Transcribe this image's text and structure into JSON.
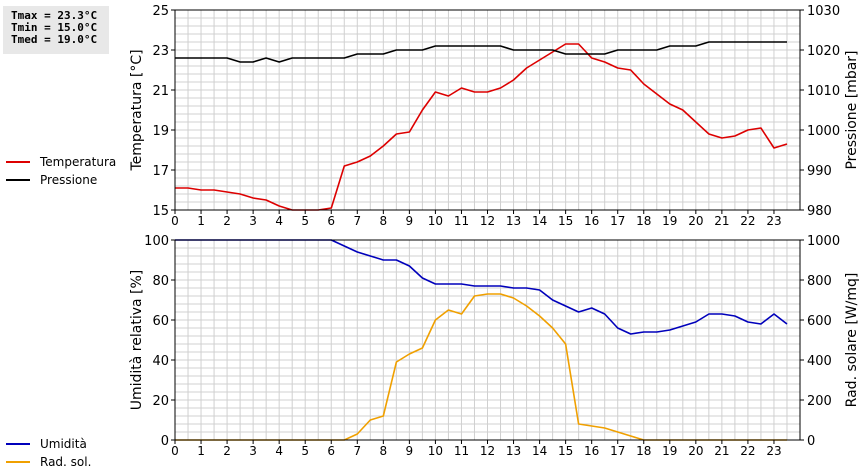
{
  "stats": {
    "tmax": "Tmax = 23.3°C",
    "tmin": "Tmin = 15.0°C",
    "tmed": "Tmed = 19.0°C"
  },
  "colors": {
    "temperature": "#dd0000",
    "pressure": "#000000",
    "humidity": "#0000bb",
    "radiation": "#f0a000",
    "grid": "#d0d0d0"
  },
  "legend_top": [
    {
      "label": "Temperatura",
      "color": "#dd0000"
    },
    {
      "label": "Pressione",
      "color": "#000000"
    }
  ],
  "legend_bottom": [
    {
      "label": "Umidità",
      "color": "#0000bb"
    },
    {
      "label": "Rad. sol.",
      "color": "#f0a000"
    }
  ],
  "chart_data": [
    {
      "type": "line",
      "ylabel": "Temperatura [°C]",
      "y2label": "Pressione [mbar]",
      "xlim": [
        0,
        24
      ],
      "ylim": [
        15,
        25
      ],
      "y2lim": [
        980,
        1030
      ],
      "xticks": [
        "0",
        "1",
        "2",
        "3",
        "4",
        "5",
        "6",
        "7",
        "8",
        "9",
        "10",
        "11",
        "12",
        "13",
        "14",
        "15",
        "16",
        "17",
        "18",
        "19",
        "20",
        "21",
        "22",
        "23"
      ],
      "yticks": [
        "15",
        "17",
        "19",
        "21",
        "23",
        "25"
      ],
      "y2ticks": [
        "980",
        "990",
        "1000",
        "1010",
        "1020",
        "1030"
      ],
      "grid": true,
      "series": [
        {
          "name": "Temperatura",
          "axis": "left",
          "color": "#dd0000",
          "points": [
            [
              0,
              16.1
            ],
            [
              0.5,
              16.1
            ],
            [
              1,
              16.0
            ],
            [
              1.5,
              16.0
            ],
            [
              2,
              15.9
            ],
            [
              2.5,
              15.8
            ],
            [
              3,
              15.6
            ],
            [
              3.5,
              15.5
            ],
            [
              4,
              15.2
            ],
            [
              4.5,
              15.0
            ],
            [
              5,
              15.0
            ],
            [
              5.5,
              15.0
            ],
            [
              6,
              15.1
            ],
            [
              6.5,
              17.2
            ],
            [
              7,
              17.4
            ],
            [
              7.5,
              17.7
            ],
            [
              8,
              18.2
            ],
            [
              8.5,
              18.8
            ],
            [
              9,
              18.9
            ],
            [
              9.5,
              20.0
            ],
            [
              10,
              20.9
            ],
            [
              10.5,
              20.7
            ],
            [
              11,
              21.1
            ],
            [
              11.5,
              20.9
            ],
            [
              12,
              20.9
            ],
            [
              12.5,
              21.1
            ],
            [
              13,
              21.5
            ],
            [
              13.5,
              22.1
            ],
            [
              14,
              22.5
            ],
            [
              14.5,
              22.9
            ],
            [
              15,
              23.3
            ],
            [
              15.5,
              23.3
            ],
            [
              16,
              22.6
            ],
            [
              16.5,
              22.4
            ],
            [
              17,
              22.1
            ],
            [
              17.5,
              22.0
            ],
            [
              18,
              21.3
            ],
            [
              18.5,
              20.8
            ],
            [
              19,
              20.3
            ],
            [
              19.5,
              20.0
            ],
            [
              20,
              19.4
            ],
            [
              20.5,
              18.8
            ],
            [
              21,
              18.6
            ],
            [
              21.5,
              18.7
            ],
            [
              22,
              19.0
            ],
            [
              22.5,
              19.1
            ],
            [
              23,
              18.1
            ],
            [
              23.5,
              18.3
            ]
          ]
        },
        {
          "name": "Pressione",
          "axis": "right",
          "color": "#000000",
          "points": [
            [
              0,
              1018
            ],
            [
              0.5,
              1018
            ],
            [
              1,
              1018
            ],
            [
              1.5,
              1018
            ],
            [
              2,
              1018
            ],
            [
              2.5,
              1017
            ],
            [
              3,
              1017
            ],
            [
              3.5,
              1018
            ],
            [
              4,
              1017
            ],
            [
              4.5,
              1018
            ],
            [
              5,
              1018
            ],
            [
              5.5,
              1018
            ],
            [
              6,
              1018
            ],
            [
              6.5,
              1018
            ],
            [
              7,
              1019
            ],
            [
              7.5,
              1019
            ],
            [
              8,
              1019
            ],
            [
              8.5,
              1020
            ],
            [
              9,
              1020
            ],
            [
              9.5,
              1020
            ],
            [
              10,
              1021
            ],
            [
              10.5,
              1021
            ],
            [
              11,
              1021
            ],
            [
              11.5,
              1021
            ],
            [
              12,
              1021
            ],
            [
              12.5,
              1021
            ],
            [
              13,
              1020
            ],
            [
              13.5,
              1020
            ],
            [
              14,
              1020
            ],
            [
              14.5,
              1020
            ],
            [
              15,
              1019
            ],
            [
              15.5,
              1019
            ],
            [
              16,
              1019
            ],
            [
              16.5,
              1019
            ],
            [
              17,
              1020
            ],
            [
              17.5,
              1020
            ],
            [
              18,
              1020
            ],
            [
              18.5,
              1020
            ],
            [
              19,
              1021
            ],
            [
              19.5,
              1021
            ],
            [
              20,
              1021
            ],
            [
              20.5,
              1022
            ],
            [
              21,
              1022
            ],
            [
              21.5,
              1022
            ],
            [
              22,
              1022
            ],
            [
              22.5,
              1022
            ],
            [
              23,
              1022
            ],
            [
              23.5,
              1022
            ]
          ]
        }
      ]
    },
    {
      "type": "line",
      "ylabel": "Umidità relativa [%]",
      "y2label": "Rad. solare [W/mq]",
      "xlim": [
        0,
        24
      ],
      "ylim": [
        0,
        100
      ],
      "y2lim": [
        0,
        1000
      ],
      "xticks": [
        "0",
        "1",
        "2",
        "3",
        "4",
        "5",
        "6",
        "7",
        "8",
        "9",
        "10",
        "11",
        "12",
        "13",
        "14",
        "15",
        "16",
        "17",
        "18",
        "19",
        "20",
        "21",
        "22",
        "23"
      ],
      "yticks": [
        "0",
        "20",
        "40",
        "60",
        "80",
        "100"
      ],
      "y2ticks": [
        "0",
        "200",
        "400",
        "600",
        "800",
        "1000"
      ],
      "grid": true,
      "series": [
        {
          "name": "Umidità",
          "axis": "left",
          "color": "#0000bb",
          "points": [
            [
              0,
              100
            ],
            [
              1,
              100
            ],
            [
              2,
              100
            ],
            [
              3,
              100
            ],
            [
              4,
              100
            ],
            [
              5,
              100
            ],
            [
              6,
              100
            ],
            [
              6.5,
              97
            ],
            [
              7,
              94
            ],
            [
              7.5,
              92
            ],
            [
              8,
              90
            ],
            [
              8.5,
              90
            ],
            [
              9,
              87
            ],
            [
              9.5,
              81
            ],
            [
              10,
              78
            ],
            [
              10.5,
              78
            ],
            [
              11,
              78
            ],
            [
              11.5,
              77
            ],
            [
              12,
              77
            ],
            [
              12.5,
              77
            ],
            [
              13,
              76
            ],
            [
              13.5,
              76
            ],
            [
              14,
              75
            ],
            [
              14.5,
              70
            ],
            [
              15,
              67
            ],
            [
              15.5,
              64
            ],
            [
              16,
              66
            ],
            [
              16.5,
              63
            ],
            [
              17,
              56
            ],
            [
              17.5,
              53
            ],
            [
              18,
              54
            ],
            [
              18.5,
              54
            ],
            [
              19,
              55
            ],
            [
              19.5,
              57
            ],
            [
              20,
              59
            ],
            [
              20.5,
              63
            ],
            [
              21,
              63
            ],
            [
              21.5,
              62
            ],
            [
              22,
              59
            ],
            [
              22.5,
              58
            ],
            [
              23,
              63
            ],
            [
              23.5,
              58
            ]
          ]
        },
        {
          "name": "Rad. sol.",
          "axis": "right",
          "color": "#f0a000",
          "points": [
            [
              0,
              0
            ],
            [
              1,
              0
            ],
            [
              2,
              0
            ],
            [
              3,
              0
            ],
            [
              4,
              0
            ],
            [
              5,
              0
            ],
            [
              6,
              0
            ],
            [
              6.5,
              0
            ],
            [
              7,
              30
            ],
            [
              7.5,
              100
            ],
            [
              8,
              120
            ],
            [
              8.5,
              390
            ],
            [
              9,
              430
            ],
            [
              9.5,
              460
            ],
            [
              10,
              600
            ],
            [
              10.5,
              650
            ],
            [
              11,
              630
            ],
            [
              11.5,
              720
            ],
            [
              12,
              730
            ],
            [
              12.5,
              730
            ],
            [
              13,
              710
            ],
            [
              13.5,
              670
            ],
            [
              14,
              620
            ],
            [
              14.5,
              560
            ],
            [
              15,
              480
            ],
            [
              15.5,
              80
            ],
            [
              16,
              70
            ],
            [
              16.5,
              60
            ],
            [
              17,
              40
            ],
            [
              17.5,
              20
            ],
            [
              18,
              0
            ],
            [
              19,
              0
            ],
            [
              20,
              0
            ],
            [
              21,
              0
            ],
            [
              22,
              0
            ],
            [
              23,
              0
            ],
            [
              23.5,
              0
            ]
          ]
        }
      ]
    }
  ]
}
